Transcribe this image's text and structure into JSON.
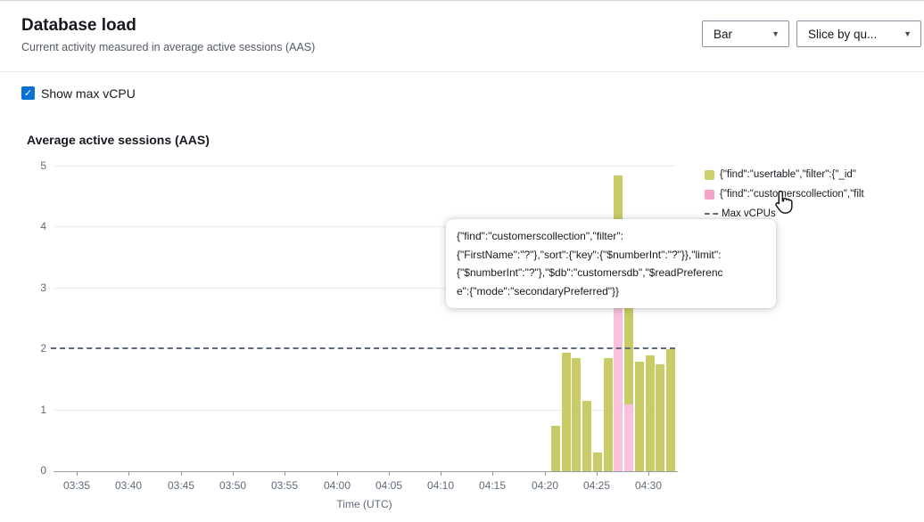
{
  "header": {
    "title": "Database load",
    "subtitle": "Current activity measured in average active sessions (AAS)"
  },
  "controls": {
    "chart_type": {
      "value": "Bar"
    },
    "slice_by": {
      "value": "Slice by qu..."
    }
  },
  "show_max_vcpu": {
    "label": "Show max vCPU",
    "checked": true,
    "check_glyph": "✓"
  },
  "chart": {
    "title": "Average active sessions (AAS)",
    "x_title": "Time (UTC)"
  },
  "legend": {
    "items": [
      {
        "label": "{\"find\":\"usertable\",\"filter\":{\"_id\"",
        "swatch": "square",
        "color": "#cdd06f"
      },
      {
        "label": "{\"find\":\"customerscollection\",\"filt",
        "swatch": "square",
        "color": "#f5a2c7"
      },
      {
        "label": "Max vCPUs",
        "swatch": "dashed-line",
        "color": "#5f6b7a"
      }
    ]
  },
  "tooltip": {
    "lines": [
      "{\"find\":\"customerscollection\",\"filter\":",
      "{\"FirstName\":\"?\"},\"sort\":{\"key\":{\"$numberInt\":\"?\"}},\"limit\":",
      "{\"$numberInt\":\"?\"},\"$db\":\"customersdb\",\"$readPreferenc",
      "e\":{\"mode\":\"secondaryPreferred\"}}"
    ],
    "full_text": "{\"find\":\"customerscollection\",\"filter\":{\"FirstName\":\"?\"},\"sort\":{\"key\":{\"$numberInt\":\"?\"}},\"limit\":{\"$numberInt\":\"?\"},\"$db\":\"customersdb\",\"$readPreference\":{\"mode\":\"secondaryPreferred\"}}"
  },
  "chart_data": {
    "type": "bar",
    "stacked": true,
    "title": "Average active sessions (AAS)",
    "xlabel": "Time (UTC)",
    "ylabel": "Average active sessions (AAS)",
    "ylim": [
      0,
      5
    ],
    "y_ticks": [
      0,
      1,
      2,
      3,
      4,
      5
    ],
    "x_axis_ticks": [
      "03:35",
      "03:40",
      "03:45",
      "03:50",
      "03:55",
      "04:00",
      "04:05",
      "04:10",
      "04:15",
      "04:20",
      "04:25",
      "04:30"
    ],
    "grid": true,
    "legend_position": "top-right",
    "reference_line": {
      "label": "Max vCPUs",
      "value": 2,
      "style": "dashed",
      "color": "#5f6b7a"
    },
    "categories": [
      "04:21",
      "04:22",
      "04:23",
      "04:24",
      "04:25",
      "04:26",
      "04:27",
      "04:28",
      "04:29",
      "04:30",
      "04:31",
      "04:32"
    ],
    "series": [
      {
        "name": "{\"find\":\"usertable\",\"filter\":{\"_id\"",
        "color": "#c9cc66",
        "stack": "top",
        "values": [
          0.75,
          1.95,
          1.85,
          1.15,
          0.3,
          1.85,
          1.15,
          1.8,
          1.8,
          1.9,
          1.75,
          2.0
        ]
      },
      {
        "name": "{\"find\":\"customerscollection\",\"filt",
        "color": "#f9c1dc",
        "stack": "bottom",
        "values": [
          0,
          0,
          0,
          0,
          0,
          0,
          3.7,
          1.1,
          0,
          0,
          0,
          0
        ]
      }
    ]
  }
}
